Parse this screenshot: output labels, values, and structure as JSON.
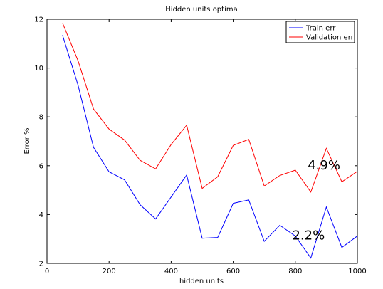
{
  "chart_data": {
    "type": "line",
    "title": "Hidden units optima",
    "xlabel": "hidden units",
    "ylabel": "Error %",
    "xlim": [
      0,
      1000
    ],
    "ylim": [
      2,
      12
    ],
    "xticks": [
      0,
      200,
      400,
      600,
      800,
      1000
    ],
    "yticks": [
      2,
      4,
      6,
      8,
      10,
      12
    ],
    "grid": false,
    "legend_position": "top-right",
    "x": [
      50,
      100,
      150,
      200,
      250,
      300,
      350,
      400,
      450,
      500,
      550,
      600,
      650,
      700,
      750,
      800,
      850,
      900,
      950,
      1000
    ],
    "series": [
      {
        "name": "Train err",
        "color": "#0000ff",
        "values": [
          11.35,
          9.3,
          6.75,
          5.75,
          5.42,
          4.4,
          3.82,
          4.72,
          5.62,
          3.03,
          3.06,
          4.46,
          4.6,
          2.9,
          3.56,
          3.12,
          2.22,
          4.31,
          2.65,
          3.12
        ]
      },
      {
        "name": "Validation err",
        "color": "#ff0000",
        "values": [
          11.85,
          10.3,
          8.32,
          7.5,
          7.05,
          6.22,
          5.87,
          6.87,
          7.66,
          5.07,
          5.55,
          6.83,
          7.08,
          5.17,
          5.6,
          5.82,
          4.92,
          6.71,
          5.34,
          5.77
        ]
      }
    ],
    "annotations": [
      {
        "text": "4.9%",
        "x": 840,
        "y": 5.85
      },
      {
        "text": "2.2%",
        "x": 790,
        "y": 2.98
      }
    ]
  }
}
